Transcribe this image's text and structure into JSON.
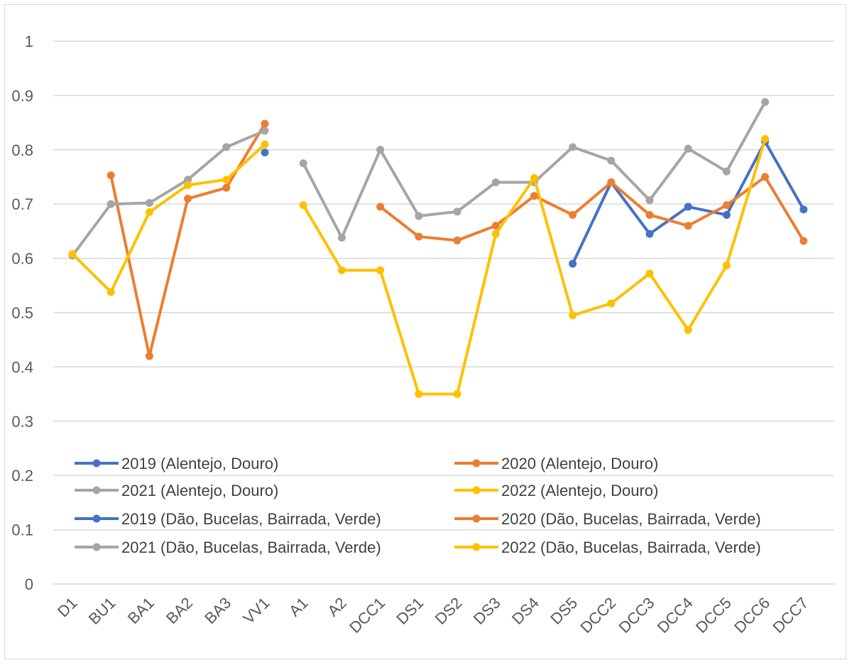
{
  "chart_data": {
    "type": "line",
    "title": "",
    "xlabel": "",
    "ylabel": "",
    "categories": [
      "D1",
      "BU1",
      "BA1",
      "BA2",
      "BA3",
      "VV1",
      "A1",
      "A2",
      "DCC1",
      "DS1",
      "DS2",
      "DS3",
      "DS4",
      "DS5",
      "DCC2",
      "DCC3",
      "DCC4",
      "DCC5",
      "DCC6",
      "DCC7"
    ],
    "ylim": [
      0,
      1
    ],
    "y_ticks": [
      "0",
      "0.1",
      "0.2",
      "0.3",
      "0.4",
      "0.5",
      "0.6",
      "0.7",
      "0.8",
      "0.9",
      "1"
    ],
    "grid": true,
    "legend_placement": "bottom-left",
    "series": [
      {
        "name": "2019 (Alentejo, Douro)",
        "color": "#4472c4",
        "values": [
          null,
          null,
          null,
          null,
          null,
          null,
          null,
          null,
          null,
          null,
          null,
          null,
          null,
          0.59,
          0.74,
          0.645,
          0.695,
          0.68,
          0.815,
          0.69
        ]
      },
      {
        "name": "2020 (Alentejo, Douro)",
        "color": "#ed7d31",
        "values": [
          null,
          null,
          null,
          null,
          null,
          null,
          null,
          null,
          0.695,
          0.64,
          0.633,
          0.66,
          0.715,
          0.68,
          0.74,
          0.68,
          0.66,
          0.698,
          0.75,
          0.632
        ]
      },
      {
        "name": "2021 (Alentejo, Douro)",
        "color": "#a5a5a5",
        "values": [
          null,
          null,
          null,
          null,
          null,
          null,
          0.775,
          0.638,
          0.8,
          0.678,
          0.686,
          0.74,
          0.74,
          0.805,
          0.78,
          0.707,
          0.802,
          0.76,
          0.888,
          null
        ]
      },
      {
        "name": "2022 (Alentejo, Douro)",
        "color": "#ffc000",
        "values": [
          null,
          null,
          null,
          null,
          null,
          null,
          0.698,
          0.578,
          0.578,
          0.35,
          0.35,
          0.645,
          0.748,
          0.495,
          0.517,
          0.572,
          0.468,
          0.587,
          0.82,
          null
        ]
      },
      {
        "name": "2019 (Dão, Bucelas, Bairrada, Verde)",
        "color": "#4472c4",
        "values": [
          null,
          null,
          null,
          null,
          null,
          0.795,
          null,
          null,
          null,
          null,
          null,
          null,
          null,
          null,
          null,
          null,
          null,
          null,
          null,
          null
        ]
      },
      {
        "name": "2020 (Dão, Bucelas, Bairrada, Verde)",
        "color": "#ed7d31",
        "values": [
          null,
          0.753,
          0.42,
          0.71,
          0.73,
          0.848,
          null,
          null,
          null,
          null,
          null,
          null,
          null,
          null,
          null,
          null,
          null,
          null,
          null,
          null
        ]
      },
      {
        "name": "2021 (Dão, Bucelas, Bairrada, Verde)",
        "color": "#a5a5a5",
        "values": [
          0.605,
          0.7,
          0.702,
          0.745,
          0.805,
          0.835,
          null,
          null,
          null,
          null,
          null,
          null,
          null,
          null,
          null,
          null,
          null,
          null,
          null,
          null
        ]
      },
      {
        "name": "2022 (Dão, Bucelas, Bairrada, Verde)",
        "color": "#ffc000",
        "values": [
          0.608,
          0.538,
          0.685,
          0.735,
          0.745,
          0.81,
          null,
          null,
          null,
          null,
          null,
          null,
          null,
          null,
          null,
          null,
          null,
          null,
          null,
          null
        ]
      }
    ]
  }
}
